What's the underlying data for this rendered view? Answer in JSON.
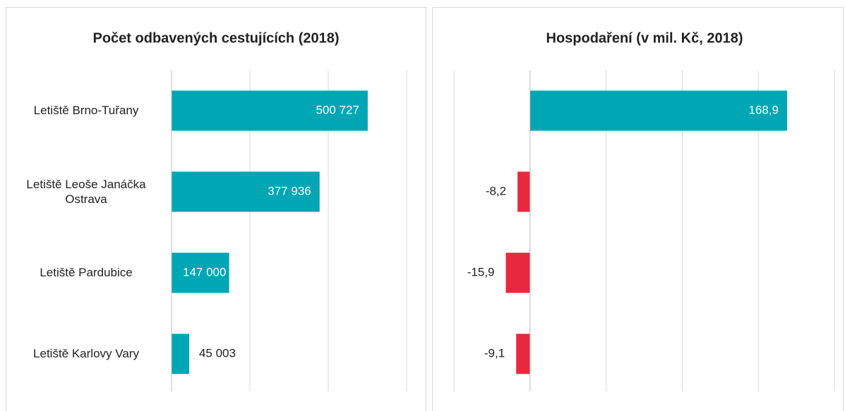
{
  "chart_data": [
    {
      "type": "bar",
      "title": "Počet odbavených cestujících (2018)",
      "categories": [
        "Letiště Brno-Tuřany",
        "Letiště Leoše Janáčka Ostrava",
        "Letiště Pardubice",
        "Letiště Karlovy Vary"
      ],
      "values": [
        500727,
        377936,
        147000,
        45003
      ],
      "value_labels": [
        "500 727",
        "377 936",
        "147 000",
        "45 003"
      ],
      "color": "#00a6b4",
      "xlim": [
        0,
        600000
      ],
      "xticks": [
        0,
        200000,
        400000,
        600000
      ],
      "grid": true
    },
    {
      "type": "bar",
      "title": "Hospodaření (v mil. Kč, 2018)",
      "values": [
        168.9,
        -8.2,
        -15.9,
        -9.1
      ],
      "value_labels": [
        "168,9",
        "-8,2",
        "-15,9",
        "-9,1"
      ],
      "color": "#00a6b4",
      "negative_color": "#e8283f",
      "xlim": [
        -50,
        200
      ],
      "xticks": [
        -50,
        0,
        50,
        100,
        150,
        200
      ],
      "grid": true
    }
  ]
}
